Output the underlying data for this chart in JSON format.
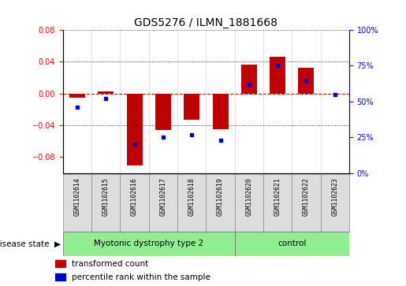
{
  "title": "GDS5276 / ILMN_1881668",
  "samples": [
    "GSM1102614",
    "GSM1102615",
    "GSM1102616",
    "GSM1102617",
    "GSM1102618",
    "GSM1102619",
    "GSM1102620",
    "GSM1102621",
    "GSM1102622",
    "GSM1102623"
  ],
  "transformed_count": [
    -0.005,
    0.003,
    -0.09,
    -0.046,
    -0.033,
    -0.045,
    0.036,
    0.046,
    0.033,
    0.0
  ],
  "percentile_rank": [
    46,
    52,
    20,
    25,
    27,
    23,
    62,
    75,
    65,
    55
  ],
  "disease_groups": [
    {
      "label": "Myotonic dystrophy type 2",
      "start": 0,
      "end": 5,
      "color": "#90EE90"
    },
    {
      "label": "control",
      "start": 6,
      "end": 9,
      "color": "#90EE90"
    }
  ],
  "ylim_left": [
    -0.1,
    0.08
  ],
  "ylim_right": [
    0,
    100
  ],
  "left_yticks": [
    -0.08,
    -0.04,
    0.0,
    0.04,
    0.08
  ],
  "right_yticks": [
    0,
    25,
    50,
    75,
    100
  ],
  "bar_color": "#C00000",
  "dot_color": "#0000CC",
  "zero_line_color": "#CC0000",
  "grid_color": "#000000",
  "bg_color": "#FFFFFF",
  "plot_bg": "#FFFFFF",
  "legend_red_label": "transformed count",
  "legend_blue_label": "percentile rank within the sample",
  "disease_state_label": "disease state"
}
